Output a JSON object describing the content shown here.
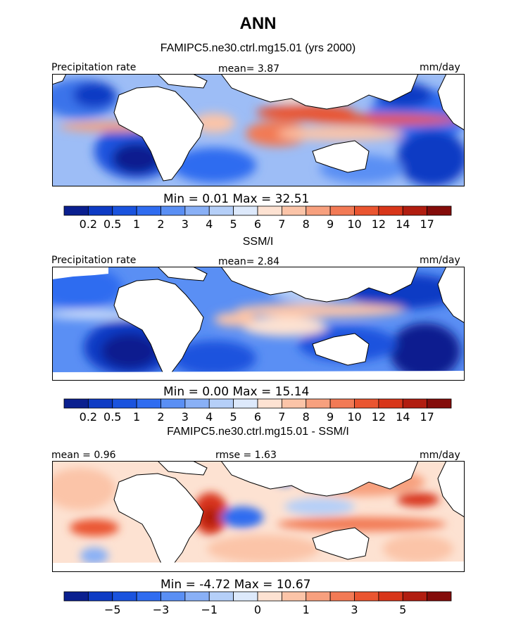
{
  "title": "ANN",
  "panels": [
    {
      "subtitle": "FAMIPC5.ne30.ctrl.mg15.01 (yrs 2000)",
      "left_label": "Precipitation rate",
      "center_label": "mean=    3.87",
      "right_label": "mm/day",
      "minmax": "Min =    0.01  Max =   32.51",
      "colorbar": {
        "colors": [
          "#0a1f8f",
          "#0e3bc4",
          "#1a53de",
          "#2f6cf0",
          "#5a8ff4",
          "#89b0f6",
          "#b5cff8",
          "#dde9fb",
          "#fde2d2",
          "#fbc4a8",
          "#f7a07e",
          "#f27a55",
          "#ea5530",
          "#d8361a",
          "#b11d10",
          "#840c0a"
        ],
        "labels": [
          "0.2",
          "0.5",
          "1",
          "2",
          "3",
          "4",
          "5",
          "6",
          "7",
          "8",
          "9",
          "10",
          "12",
          "14",
          "17"
        ]
      }
    },
    {
      "subtitle": "SSM/I",
      "left_label": "Precipitation rate",
      "center_label": "mean=    2.84",
      "right_label": "mm/day",
      "minmax": "Min =    0.00  Max =   15.14",
      "colorbar": {
        "colors": [
          "#0a1f8f",
          "#0e3bc4",
          "#1a53de",
          "#2f6cf0",
          "#5a8ff4",
          "#89b0f6",
          "#b5cff8",
          "#dde9fb",
          "#fde2d2",
          "#fbc4a8",
          "#f7a07e",
          "#f27a55",
          "#ea5530",
          "#d8361a",
          "#b11d10",
          "#840c0a"
        ],
        "labels": [
          "0.2",
          "0.5",
          "1",
          "2",
          "3",
          "4",
          "5",
          "6",
          "7",
          "8",
          "9",
          "10",
          "12",
          "14",
          "17"
        ]
      }
    },
    {
      "subtitle": "FAMIPC5.ne30.ctrl.mg15.01 - SSM/I",
      "left_label": "mean =    0.96",
      "center_label": "rmse =    1.63",
      "right_label": "mm/day",
      "minmax": "Min =   -4.72  Max =   10.67",
      "colorbar": {
        "colors": [
          "#0a1f8f",
          "#0e3bc4",
          "#1a53de",
          "#2f6cf0",
          "#5a8ff4",
          "#89b0f6",
          "#b5cff8",
          "#dde9fb",
          "#fde2d2",
          "#fbc4a8",
          "#f7a07e",
          "#f27a55",
          "#ea5530",
          "#d8361a",
          "#b11d10",
          "#840c0a"
        ],
        "labels": [
          "-5",
          "-3",
          "-1",
          "0",
          "1",
          "3",
          "5"
        ]
      }
    }
  ]
}
